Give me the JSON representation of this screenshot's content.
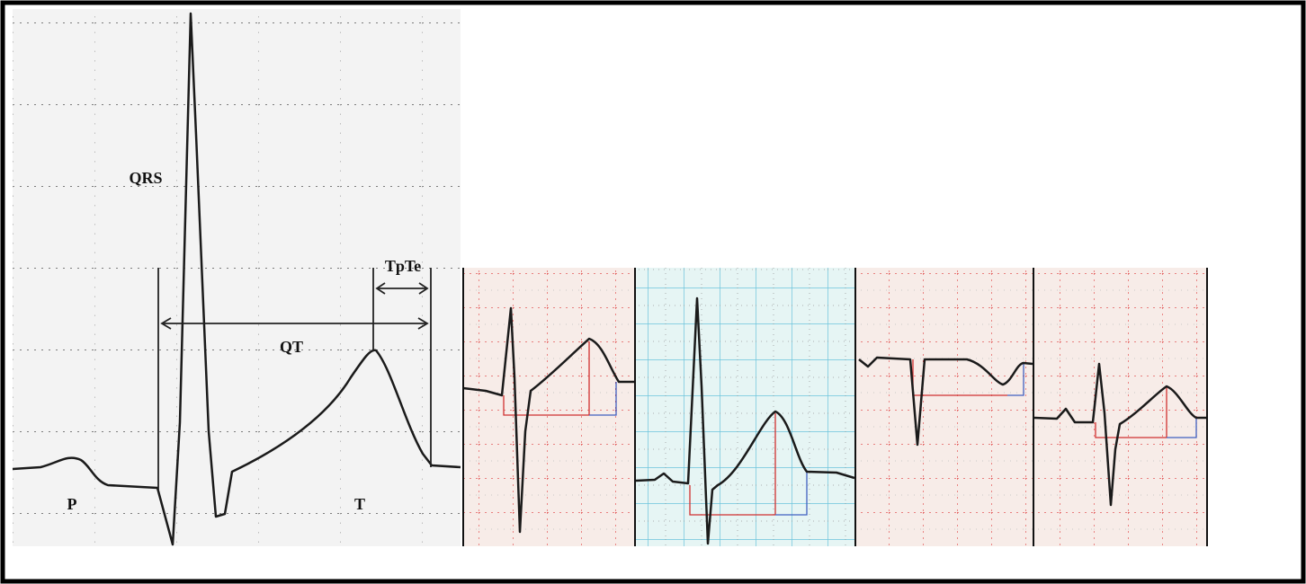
{
  "labels": {
    "qrs": "QRS",
    "qt": "QT",
    "tpte": "TpTe",
    "p": "P",
    "t": "T"
  }
}
